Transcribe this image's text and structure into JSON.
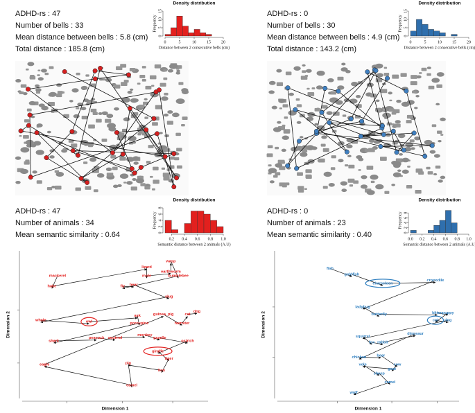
{
  "stats": [
    [
      "ADHD-rs : 47",
      "Number of bells : 33",
      "Mean distance between bells : 5.8 (cm)",
      "Total distance : 185.8 (cm)"
    ],
    [
      "ADHD-rs : 0",
      "Number of bells : 30",
      "Mean distance between bells : 4.9 (cm)",
      "Total distance : 143.2 (cm)"
    ],
    [
      "ADHD-rs : 47",
      "Number of animals : 34",
      "Mean semantic similarity : 0.64"
    ],
    [
      "ADHD-rs : 0",
      "Number of animals : 23",
      "Mean semantic similarity : 0.40"
    ]
  ],
  "chart_data": [
    {
      "type": "histogram",
      "title": "Density distribution",
      "xlabel": "Distance between 2 consecutive bells (cm)",
      "ylabel": "Frequency",
      "color": "#e3201e",
      "bins": [
        0,
        2,
        4,
        6,
        8,
        10,
        12,
        14,
        16
      ],
      "values": [
        1,
        5,
        12,
        6,
        2,
        4,
        2,
        1
      ],
      "xlim": [
        0,
        20
      ],
      "xticks": [
        0,
        5,
        10,
        15,
        20
      ],
      "ylim": [
        0,
        15
      ],
      "yticks": [
        0,
        5,
        10,
        15
      ]
    },
    {
      "type": "histogram",
      "title": "Density distribution",
      "xlabel": "Distance between 2 consecutive bells (cm)",
      "ylabel": "Frequency",
      "color": "#2f6fad",
      "bins": [
        0,
        2,
        4,
        6,
        8,
        10,
        12,
        14,
        16
      ],
      "values": [
        3,
        10,
        7,
        4,
        3,
        2,
        0,
        1
      ],
      "xlim": [
        0,
        20
      ],
      "xticks": [
        0,
        5,
        10,
        15,
        20
      ],
      "ylim": [
        0,
        15
      ],
      "yticks": [
        0,
        5,
        10,
        15
      ]
    },
    {
      "type": "histogram",
      "title": "Density distribution",
      "xlabel": "Semantic distance between 2 animals (A.U)",
      "ylabel": "Frequency",
      "color": "#e3201e",
      "bins": [
        0.1,
        0.2,
        0.3,
        0.4,
        0.5,
        0.6,
        0.7,
        0.8,
        0.9,
        1.0
      ],
      "values": [
        4,
        1,
        0,
        3,
        7,
        7,
        6,
        4,
        2
      ],
      "xlim": [
        0.1,
        1.0
      ],
      "xticks": [
        0.2,
        0.4,
        0.6,
        0.8,
        {
          "value": 1.0,
          "label": "1.0"
        }
      ],
      "ylim": [
        0,
        8
      ],
      "yticks": [
        0,
        2,
        4,
        6,
        8
      ]
    },
    {
      "type": "histogram",
      "title": "Density distribution",
      "xlabel": "Semantic distance between 2 animals (A.U)",
      "ylabel": "Frequency",
      "color": "#2f6fad",
      "bins": [
        0,
        0.1,
        0.2,
        0.3,
        0.4,
        0.5,
        0.6,
        0.7,
        0.8,
        0.9,
        1.0
      ],
      "values": [
        1,
        0,
        0,
        1,
        3,
        5,
        9,
        4,
        0,
        0
      ],
      "xlim": [
        0,
        1.0
      ],
      "xticks": [
        {
          "value": 0,
          "label": "0.0"
        },
        0.2,
        0.4,
        0.6,
        0.8,
        {
          "value": 1.0,
          "label": "1.0"
        }
      ],
      "ylim": [
        0,
        10
      ],
      "yticks": [
        0,
        2,
        4,
        6,
        8
      ]
    },
    {
      "type": "scatter",
      "xlabel": "Dimension 1",
      "ylabel": "Dimension 2",
      "color": "#e3201e",
      "labels": [
        "mackerel",
        "hake",
        "lizard",
        "mole",
        "earthworm",
        "wasp",
        "bumblebee",
        "fly",
        "bear",
        "slug",
        "whale",
        "owl",
        "ask",
        "porcupine",
        "shark",
        "peacock",
        "squirrel",
        "monkey",
        "gazelle",
        "ostrich",
        "giraffe",
        "tiger",
        "lion",
        "pig",
        "camel",
        "eagle",
        "guinea_pig",
        "hamster",
        "cat",
        "dog"
      ],
      "x": [
        19,
        16,
        67,
        67,
        80,
        80,
        84,
        54,
        60,
        79,
        10,
        36,
        62,
        63,
        17,
        40,
        50,
        66,
        74,
        89,
        73,
        79,
        75,
        57,
        59,
        12,
        76,
        86,
        89,
        94
      ],
      "y": [
        83,
        76,
        89,
        83,
        86,
        93,
        83,
        76,
        77,
        69,
        53,
        52,
        56,
        51,
        39,
        41,
        41,
        43,
        41,
        39,
        32,
        27,
        19,
        24,
        9,
        23,
        57,
        51,
        57,
        59
      ],
      "circled": [
        "owl",
        "giraffe"
      ],
      "xlim": [
        0,
        100
      ],
      "ylim": [
        0,
        100
      ],
      "xticks": [
        24,
        54,
        81
      ],
      "yticks": [
        24,
        60
      ]
    },
    {
      "type": "scatter",
      "xlabel": "Dimension 1",
      "ylabel": "Dimension 2",
      "color": "#2f7fc0",
      "labels": [
        "fish",
        "goldfish",
        "chameleon",
        "crocodile",
        "ladybug",
        "butterfly",
        "kitten",
        "puppy",
        "cat",
        "dog",
        "squirrel",
        "fox",
        "rabbit",
        "dinosaur",
        "chicken",
        "bear",
        "cow",
        "goat",
        "vole",
        "sheep",
        "camel",
        "wolf"
      ],
      "x": [
        29,
        41,
        58,
        87,
        47,
        56,
        88,
        94,
        87,
        94,
        47,
        52,
        58,
        76,
        45,
        57,
        66,
        63,
        47,
        56,
        62,
        42
      ],
      "y": [
        88,
        84,
        78,
        80,
        62,
        57,
        58,
        58,
        53,
        53,
        42,
        38,
        38,
        44,
        28,
        29,
        23,
        20,
        23,
        17,
        11,
        4
      ],
      "circled": [
        "chameleon",
        "cat"
      ],
      "xlim": [
        0,
        100
      ],
      "ylim": [
        0,
        100
      ],
      "xticks": [
        33,
        63,
        88
      ],
      "yticks": [
        28,
        62
      ]
    }
  ]
}
